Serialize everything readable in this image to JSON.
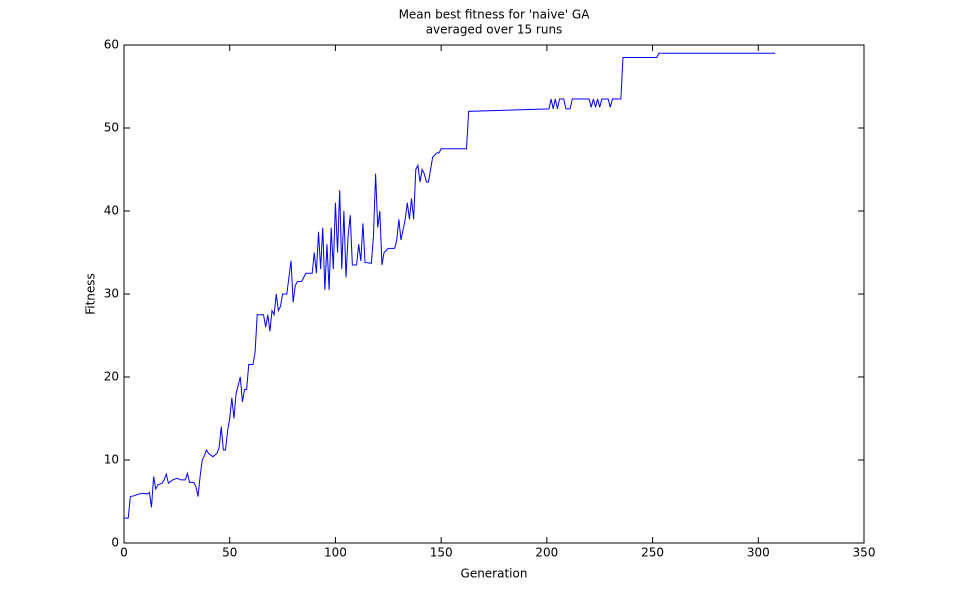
{
  "chart_data": {
    "type": "line",
    "title": "Mean best fitness for 'naive' GA",
    "subtitle": "averaged over 15 runs",
    "x_label": "Generation",
    "y_label": "Fitness",
    "color": "#0000ff",
    "xlim": [
      0,
      350
    ],
    "xticks": [
      0,
      50,
      100,
      150,
      200,
      250,
      300,
      350
    ],
    "ylim": [
      0,
      60
    ],
    "yticks": [
      0,
      10,
      20,
      30,
      40,
      50,
      60
    ],
    "x": [
      0,
      1,
      2,
      3,
      5,
      7,
      9,
      11,
      12,
      13,
      14,
      15,
      16,
      18,
      19,
      20,
      21,
      23,
      25,
      27,
      29,
      30,
      31,
      33,
      34,
      35,
      36,
      37,
      38,
      39,
      40,
      42,
      44,
      45,
      46,
      47,
      48,
      49,
      50,
      51,
      52,
      53,
      54,
      55,
      56,
      57,
      58,
      59,
      61,
      62,
      63,
      66,
      67,
      68,
      69,
      70,
      71,
      72,
      73,
      74,
      75,
      77,
      78,
      79,
      80,
      81,
      82,
      84,
      85,
      86,
      88,
      89,
      90,
      91,
      92,
      93,
      94,
      95,
      96,
      97,
      98,
      99,
      100,
      101,
      102,
      103,
      104,
      105,
      106,
      107,
      108,
      110,
      111,
      112,
      113,
      114,
      117,
      118,
      119,
      120,
      121,
      122,
      123,
      125,
      128,
      129,
      130,
      131,
      133,
      134,
      135,
      136,
      137,
      138,
      139,
      140,
      141,
      142,
      143,
      144,
      145,
      146,
      148,
      149,
      150,
      162,
      163,
      201,
      202,
      203,
      204,
      205,
      206,
      208,
      209,
      211,
      212,
      220,
      221,
      222,
      223,
      224,
      225,
      226,
      229,
      230,
      231,
      235,
      236,
      252,
      253,
      300,
      308
    ],
    "values": [
      3,
      3,
      3,
      5.6,
      5.7,
      5.9,
      6,
      5.9,
      6.1,
      4.3,
      8,
      6.5,
      7,
      7.2,
      7.6,
      8.3,
      7.2,
      7.6,
      7.8,
      7.6,
      7.6,
      8.4,
      7.3,
      7.3,
      6.8,
      5.6,
      8,
      10,
      10.5,
      11.2,
      10.8,
      10.4,
      10.8,
      11.5,
      14,
      11.2,
      11.2,
      13.5,
      15,
      17.5,
      15,
      18,
      19,
      20,
      17,
      18.5,
      18.5,
      21.5,
      21.5,
      23,
      27.5,
      27.5,
      26,
      27.5,
      25.5,
      28,
      27.5,
      30,
      28,
      28.5,
      30,
      30,
      32,
      34,
      29,
      31,
      31.5,
      31.5,
      32,
      32.5,
      32.5,
      32.5,
      35,
      32.5,
      37.5,
      33,
      38,
      30.5,
      36,
      30.5,
      38,
      33,
      41,
      35,
      42.5,
      33,
      40,
      32,
      37,
      39.5,
      33.5,
      33.5,
      36,
      34,
      38.5,
      33.8,
      33.7,
      37,
      44.5,
      38,
      40,
      33.5,
      35,
      35.5,
      35.5,
      36.5,
      39,
      36.5,
      39,
      41,
      39,
      41.5,
      39,
      45,
      45.5,
      43.5,
      45,
      44.5,
      43.5,
      43.5,
      45,
      46.5,
      47,
      47,
      47.5,
      47.5,
      52,
      52.3,
      53.5,
      52.3,
      53.5,
      52.3,
      53.5,
      53.5,
      52.3,
      52.3,
      53.5,
      53.5,
      52.5,
      53.5,
      52.5,
      53.5,
      52.5,
      53.5,
      53.5,
      52.5,
      53.5,
      53.5,
      58.5,
      58.5,
      59,
      59,
      59
    ]
  }
}
